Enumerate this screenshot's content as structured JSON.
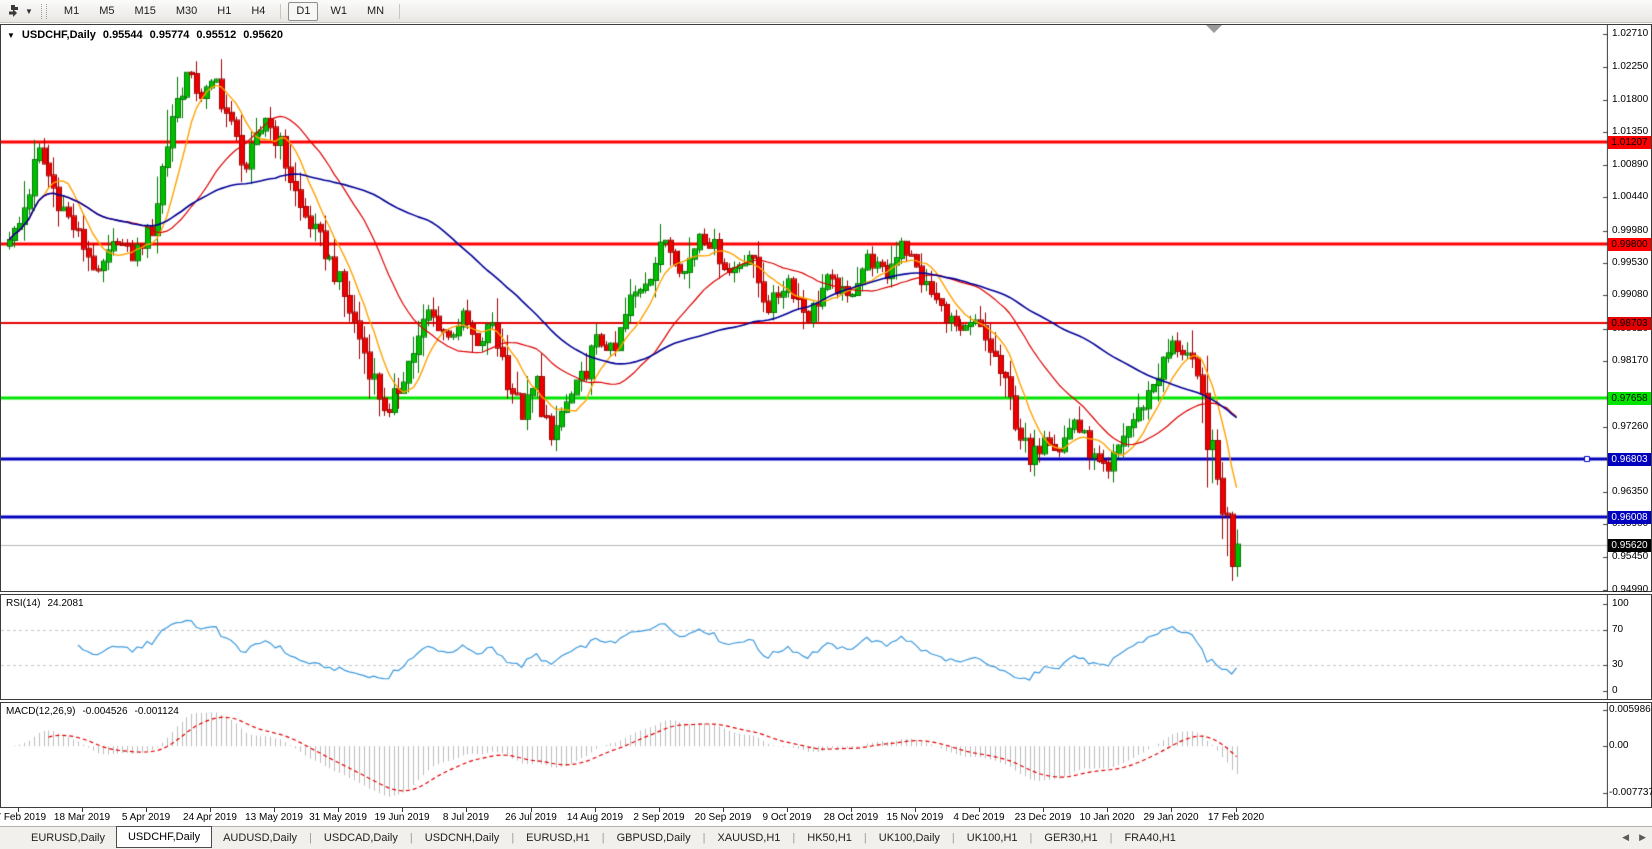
{
  "toolbar": {
    "dropdown_caret": "▼",
    "timeframes": [
      {
        "label": "M1"
      },
      {
        "label": "M5"
      },
      {
        "label": "M15"
      },
      {
        "label": "M30"
      },
      {
        "label": "H1"
      },
      {
        "label": "H4"
      },
      {
        "label": "D1",
        "active": true
      },
      {
        "label": "W1"
      },
      {
        "label": "MN"
      }
    ]
  },
  "chart": {
    "collapse_caret": "▼",
    "title": "USDCHF,Daily",
    "ohlc": {
      "open": "0.95544",
      "high": "0.95774",
      "low": "0.95512",
      "close": "0.95620"
    },
    "price_ticks": [
      "1.02710",
      "1.02250",
      "1.01800",
      "1.01350",
      "1.00890",
      "1.00440",
      "0.99980",
      "0.99530",
      "0.99080",
      "0.98620",
      "0.98170",
      "0.97260",
      "0.96350",
      "0.95900",
      "0.95450",
      "0.94990"
    ],
    "hlines": [
      {
        "price": 1.01207,
        "label": "1.01207",
        "color": "#FF0000",
        "width": 3,
        "badge_text": "#000000"
      },
      {
        "price": 0.998,
        "label": "0.99800",
        "color": "#FF0000",
        "width": 3,
        "badge_text": "#000000"
      },
      {
        "price": 0.98703,
        "label": "0.98703",
        "color": "#E40000",
        "width": 2,
        "badge_text": "#000000"
      },
      {
        "price": 0.97658,
        "label": "0.97658",
        "color": "#00E400",
        "width": 3,
        "badge_text": "#000000"
      },
      {
        "price": 0.96803,
        "label": "0.96803",
        "color": "#0000BE",
        "width": 3,
        "badge_text": "#FFFFFF",
        "handle": true
      },
      {
        "price": 0.96008,
        "label": "0.96008",
        "color": "#0000BE",
        "width": 3,
        "badge_text": "#FFFFFF"
      }
    ],
    "current_price": {
      "label": "0.95620",
      "price": 0.9562,
      "line_color": "#B6B6B6",
      "badge_bg": "#000000",
      "badge_text": "#FFFFFF"
    }
  },
  "chart_data": {
    "type": "candlestick",
    "symbol": "USDCHF",
    "timeframe": "Daily",
    "bars": 250,
    "price_range": [
      0.9499,
      1.0271
    ],
    "x_range": [
      "27 Feb 2019",
      "17 Feb 2020"
    ],
    "bull_color": "#00BE00",
    "bull_edge": "#007800",
    "bear_color": "#EE0000",
    "bear_edge": "#A00000",
    "close_waypoints": [
      [
        0,
        0.9985
      ],
      [
        2,
        1.0005
      ],
      [
        6,
        1.0108
      ],
      [
        10,
        1.004
      ],
      [
        14,
        0.999
      ],
      [
        18,
        0.9938
      ],
      [
        22,
        0.9985
      ],
      [
        25,
        0.996
      ],
      [
        29,
        1.0005
      ],
      [
        33,
        1.016
      ],
      [
        36,
        1.0215
      ],
      [
        39,
        1.0185
      ],
      [
        42,
        1.0205
      ],
      [
        45,
        1.014
      ],
      [
        48,
        1.0085
      ],
      [
        52,
        1.0155
      ],
      [
        55,
        1.0115
      ],
      [
        59,
        1.0028
      ],
      [
        63,
        0.9985
      ],
      [
        67,
        0.9925
      ],
      [
        71,
        0.985
      ],
      [
        75,
        0.977
      ],
      [
        77,
        0.9742
      ],
      [
        80,
        0.98
      ],
      [
        83,
        0.9845
      ],
      [
        85,
        0.9885
      ],
      [
        89,
        0.985
      ],
      [
        92,
        0.988
      ],
      [
        95,
        0.9835
      ],
      [
        98,
        0.987
      ],
      [
        101,
        0.9795
      ],
      [
        104,
        0.974
      ],
      [
        107,
        0.979
      ],
      [
        110,
        0.9702
      ],
      [
        112,
        0.9745
      ],
      [
        116,
        0.979
      ],
      [
        119,
        0.9845
      ],
      [
        123,
        0.983
      ],
      [
        126,
        0.99
      ],
      [
        130,
        0.994
      ],
      [
        133,
        0.9985
      ],
      [
        137,
        0.994
      ],
      [
        140,
        0.9995
      ],
      [
        143,
        0.9975
      ],
      [
        146,
        0.994
      ],
      [
        150,
        0.9965
      ],
      [
        154,
        0.989
      ],
      [
        158,
        0.993
      ],
      [
        162,
        0.9875
      ],
      [
        166,
        0.993
      ],
      [
        170,
        0.9905
      ],
      [
        174,
        0.996
      ],
      [
        178,
        0.9935
      ],
      [
        181,
        0.9985
      ],
      [
        185,
        0.993
      ],
      [
        189,
        0.989
      ],
      [
        193,
        0.9855
      ],
      [
        196,
        0.987
      ],
      [
        200,
        0.982
      ],
      [
        203,
        0.976
      ],
      [
        207,
        0.9672
      ],
      [
        210,
        0.9715
      ],
      [
        213,
        0.9695
      ],
      [
        216,
        0.9735
      ],
      [
        220,
        0.968
      ],
      [
        223,
        0.966
      ],
      [
        226,
        0.9715
      ],
      [
        229,
        0.9745
      ],
      [
        233,
        0.98
      ],
      [
        236,
        0.984
      ],
      [
        239,
        0.9825
      ],
      [
        242,
        0.976
      ],
      [
        244,
        0.968
      ],
      [
        247,
        0.959
      ],
      [
        248,
        0.954
      ],
      [
        249,
        0.9562
      ]
    ],
    "moving_averages": [
      {
        "period": 8,
        "color": "#FFA200",
        "width": 1.4
      },
      {
        "period": 24,
        "color": "#DC0000",
        "width": 1.2
      },
      {
        "period": 55,
        "color": "#000096",
        "width": 1.6
      }
    ]
  },
  "rsi": {
    "name": "RSI(14)",
    "value": "24.2081",
    "period": 14,
    "level_labels": [
      "100",
      "70",
      "30",
      "0"
    ],
    "levels": [
      100,
      70,
      30,
      0
    ],
    "dashed_levels": [
      70,
      30
    ],
    "line_color": "#3E9ADE"
  },
  "macd": {
    "name": "MACD(12,26,9)",
    "value_main": "-0.004526",
    "value_signal": "-0.001124",
    "fast": 12,
    "slow": 26,
    "signal": 9,
    "scale_labels": [
      "0.005986",
      "0.00",
      "-0.007737"
    ],
    "scale_max": 0.005986,
    "scale_min": -0.007737,
    "hist_color": "#BDBDBD",
    "signal_color": "#E00000"
  },
  "date_axis": {
    "labels": [
      "27 Feb 2019",
      "18 Mar 2019",
      "5 Apr 2019",
      "24 Apr 2019",
      "13 May 2019",
      "31 May 2019",
      "19 Jun 2019",
      "8 Jul 2019",
      "26 Jul 2019",
      "14 Aug 2019",
      "2 Sep 2019",
      "20 Sep 2019",
      "9 Oct 2019",
      "28 Oct 2019",
      "15 Nov 2019",
      "4 Dec 2019",
      "23 Dec 2019",
      "10 Jan 2020",
      "29 Jan 2020",
      "17 Feb 2020"
    ]
  },
  "tabs": {
    "items": [
      {
        "label": "EURUSD,Daily"
      },
      {
        "label": "USDCHF,Daily",
        "active": true
      },
      {
        "label": "AUDUSD,Daily"
      },
      {
        "label": "USDCAD,Daily"
      },
      {
        "label": "USDCNH,Daily"
      },
      {
        "label": "EURUSD,H1"
      },
      {
        "label": "GBPUSD,Daily"
      },
      {
        "label": "XAUUSD,H1"
      },
      {
        "label": "HK50,H1"
      },
      {
        "label": "UK100,Daily"
      },
      {
        "label": "UK100,H1"
      },
      {
        "label": "GER30,H1"
      },
      {
        "label": "FRA40,H1"
      }
    ],
    "scroll_left": "◀",
    "scroll_right": "▶"
  }
}
